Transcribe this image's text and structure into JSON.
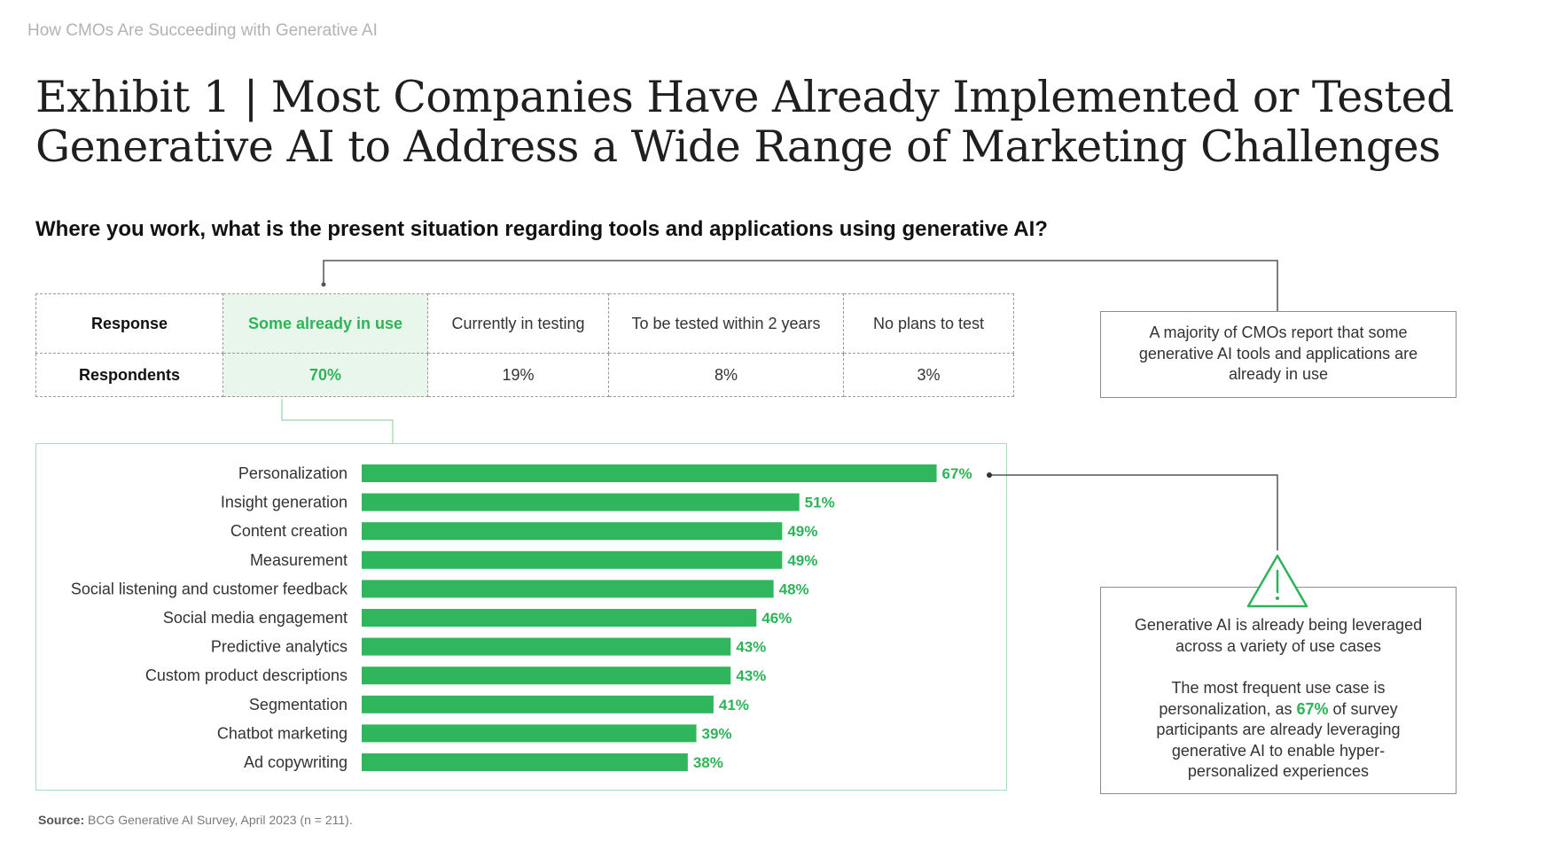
{
  "kicker": "How CMOs Are Succeeding with Generative AI",
  "title": "Exhibit 1 | Most Companies Have Already Implemented or Tested Generative AI to Address a Wide Range of Marketing Challenges",
  "question": "Where you work, what is the present situation regarding tools and applications using generative AI?",
  "colors": {
    "accent": "#2fb35a",
    "bar": "#30b65c",
    "highlight_bg": "#e9f6ec",
    "chart_border": "#a8ddb7"
  },
  "response_table": {
    "row_labels": [
      "Response",
      "Respondents"
    ],
    "columns": [
      {
        "label": "Some already in use",
        "value": "70%"
      },
      {
        "label": "Currently in testing",
        "value": "19%"
      },
      {
        "label": "To be tested within 2 years",
        "value": "8%"
      },
      {
        "label": "No plans to test",
        "value": "3%"
      }
    ]
  },
  "callouts": {
    "top": "A majority of CMOs report that some generative AI tools and applications are already in use",
    "bottom_line1": "Generative AI is already being leveraged across a variety of use cases",
    "bottom_line2_before": "The most frequent use case is personalization, as ",
    "bottom_line2_accent": "67%",
    "bottom_line2_after": " of survey participants are already leveraging generative AI to enable hyper-personalized experiences"
  },
  "icons": {
    "warning": "warning-triangle-icon"
  },
  "source": {
    "label": "Source:",
    "text": " BCG Generative AI Survey, April 2023 (n = 211)."
  },
  "chart_data": {
    "type": "bar",
    "orientation": "horizontal",
    "title": "",
    "xlabel": "",
    "ylabel": "",
    "categories": [
      "Personalization",
      "Insight generation",
      "Content creation",
      "Measurement",
      "Social listening and customer feedback",
      "Social media engagement",
      "Predictive analytics",
      "Custom product descriptions",
      "Segmentation",
      "Chatbot marketing",
      "Ad copywriting"
    ],
    "values": [
      67,
      51,
      49,
      49,
      48,
      46,
      43,
      43,
      41,
      39,
      38
    ],
    "value_labels": [
      "67%",
      "51%",
      "49%",
      "49%",
      "48%",
      "46%",
      "43%",
      "43%",
      "41%",
      "39%",
      "38%"
    ],
    "xlim": [
      0,
      100
    ],
    "grid": false,
    "legend": "none"
  }
}
